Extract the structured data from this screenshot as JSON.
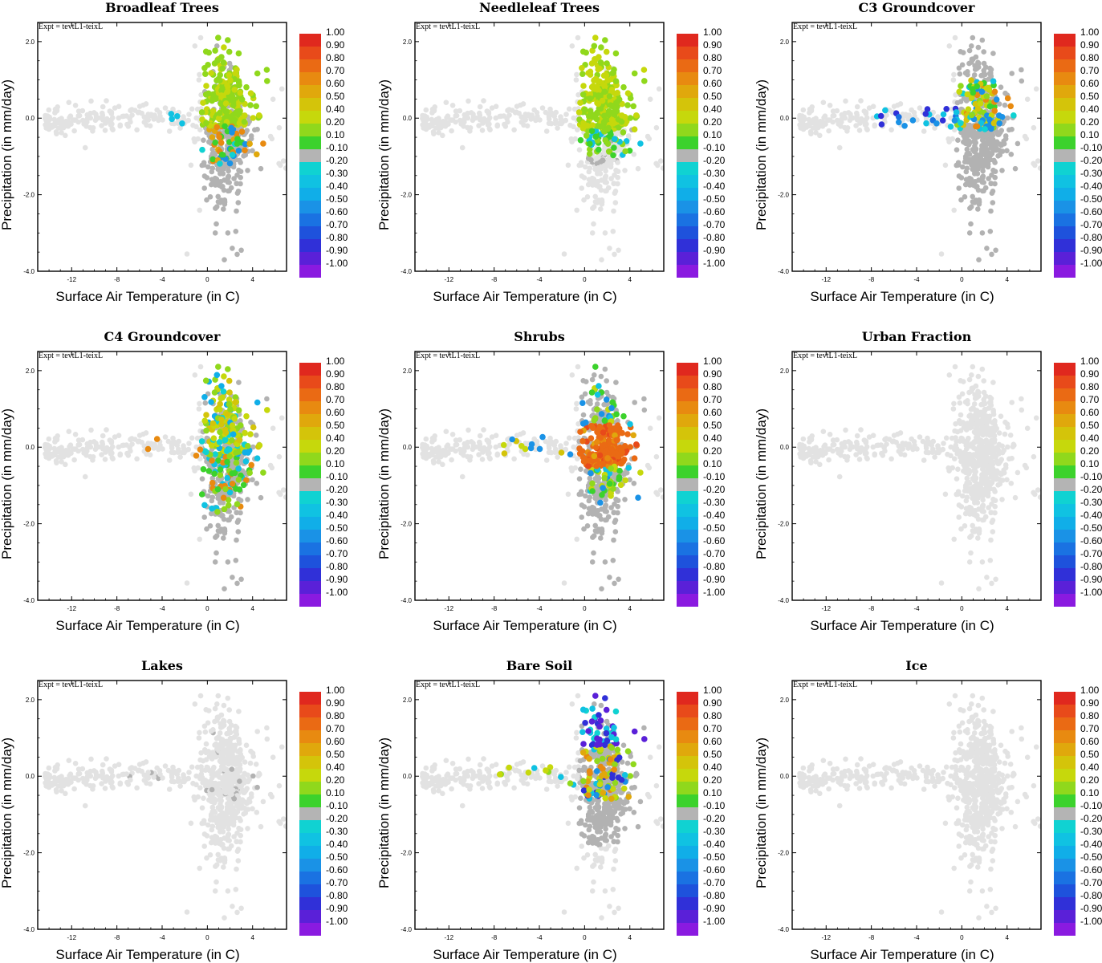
{
  "figure": {
    "xlabel": "Surface Air Temperature (in C)",
    "ylabel": "Precipitation (in mm/day)",
    "expt_label": "Expt = tevtL1-teixL"
  },
  "chart_data": [
    {
      "type": "scatter",
      "title": "Broadleaf Trees",
      "xlabel": "Surface Air Temperature (in C)",
      "ylabel": "Precipitation (in mm/day)",
      "xlim": [
        -15,
        7
      ],
      "ylim": [
        -4,
        2.5
      ],
      "x_ticks": [
        "-12",
        "-8",
        "-4",
        "0",
        "4"
      ],
      "y_ticks": [
        "-4.0",
        "-2.0",
        "0.0",
        "2.0"
      ],
      "pattern": "trees"
    },
    {
      "type": "scatter",
      "title": "Needleleaf Trees",
      "xlabel": "Surface Air Temperature (in C)",
      "ylabel": "Precipitation (in mm/day)",
      "xlim": [
        -15,
        7
      ],
      "ylim": [
        -4,
        2.5
      ],
      "x_ticks": [
        "-12",
        "-8",
        "-4",
        "0",
        "4"
      ],
      "y_ticks": [
        "-4.0",
        "-2.0",
        "0.0",
        "2.0"
      ],
      "pattern": "needle"
    },
    {
      "type": "scatter",
      "title": "C3 Groundcover",
      "xlabel": "Surface Air Temperature (in C)",
      "ylabel": "Precipitation (in mm/day)",
      "xlim": [
        -15,
        7
      ],
      "ylim": [
        -4,
        2.5
      ],
      "x_ticks": [
        "-12",
        "-8",
        "-4",
        "0",
        "4"
      ],
      "y_ticks": [
        "-4.0",
        "-2.0",
        "0.0",
        "2.0"
      ],
      "pattern": "c3"
    },
    {
      "type": "scatter",
      "title": "C4 Groundcover",
      "xlabel": "Surface Air Temperature (in C)",
      "ylabel": "Precipitation (in mm/day)",
      "xlim": [
        -15,
        7
      ],
      "ylim": [
        -4,
        2.5
      ],
      "x_ticks": [
        "-12",
        "-8",
        "-4",
        "0",
        "4"
      ],
      "y_ticks": [
        "-4.0",
        "-2.0",
        "0.0",
        "2.0"
      ],
      "pattern": "c4"
    },
    {
      "type": "scatter",
      "title": "Shrubs",
      "xlabel": "Surface Air Temperature (in C)",
      "ylabel": "Precipitation (in mm/day)",
      "xlim": [
        -15,
        7
      ],
      "ylim": [
        -4,
        2.5
      ],
      "x_ticks": [
        "-12",
        "-8",
        "-4",
        "0",
        "4"
      ],
      "y_ticks": [
        "-4.0",
        "-2.0",
        "0.0",
        "2.0"
      ],
      "pattern": "shrubs"
    },
    {
      "type": "scatter",
      "title": "Urban Fraction",
      "xlabel": "Surface Air Temperature (in C)",
      "ylabel": "Precipitation (in mm/day)",
      "xlim": [
        -15,
        7
      ],
      "ylim": [
        -4,
        2.5
      ],
      "x_ticks": [
        "-12",
        "-8",
        "-4",
        "0",
        "4"
      ],
      "y_ticks": [
        "-4.0",
        "-2.0",
        "0.0",
        "2.0"
      ],
      "pattern": "none"
    },
    {
      "type": "scatter",
      "title": "Lakes",
      "xlabel": "Surface Air Temperature (in C)",
      "ylabel": "Precipitation (in mm/day)",
      "xlim": [
        -15,
        7
      ],
      "ylim": [
        -4,
        2.5
      ],
      "x_ticks": [
        "-12",
        "-8",
        "-4",
        "0",
        "4"
      ],
      "y_ticks": [
        "-4.0",
        "-2.0",
        "0.0",
        "2.0"
      ],
      "pattern": "lakes"
    },
    {
      "type": "scatter",
      "title": "Bare Soil",
      "xlabel": "Surface Air Temperature (in C)",
      "ylabel": "Precipitation (in mm/day)",
      "xlim": [
        -15,
        7
      ],
      "ylim": [
        -4,
        2.5
      ],
      "x_ticks": [
        "-12",
        "-8",
        "-4",
        "0",
        "4"
      ],
      "y_ticks": [
        "-4.0",
        "-2.0",
        "0.0",
        "2.0"
      ],
      "pattern": "bare"
    },
    {
      "type": "scatter",
      "title": "Ice",
      "xlabel": "Surface Air Temperature (in C)",
      "ylabel": "Precipitation (in mm/day)",
      "xlim": [
        -15,
        7
      ],
      "ylim": [
        -4,
        2.5
      ],
      "x_ticks": [
        "-12",
        "-8",
        "-4",
        "0",
        "4"
      ],
      "y_ticks": [
        "-4.0",
        "-2.0",
        "0.0",
        "2.0"
      ],
      "pattern": "none"
    }
  ],
  "colorbar": {
    "labels": [
      "1.00",
      "0.90",
      "0.80",
      "0.70",
      "0.60",
      "0.50",
      "0.40",
      "0.20",
      "0.10",
      "-0.10",
      "-0.20",
      "-0.30",
      "-0.40",
      "-0.50",
      "-0.60",
      "-0.70",
      "-0.80",
      "-0.90",
      "-1.00"
    ],
    "colors": [
      "#e0281e",
      "#e84a1a",
      "#ea6a14",
      "#e88a10",
      "#e0a80c",
      "#d4c40a",
      "#c6d80c",
      "#90d81c",
      "#3cd22c",
      "#b4b4b4",
      "#10d2d2",
      "#10c2e2",
      "#10aee8",
      "#1a92e6",
      "#1a72e2",
      "#1e52dc",
      "#3030d8",
      "#5a20d8",
      "#8a1ae0"
    ]
  },
  "colors": {
    "background_points": "#e2e2e2",
    "neutral_points": "#b2b2b2"
  }
}
